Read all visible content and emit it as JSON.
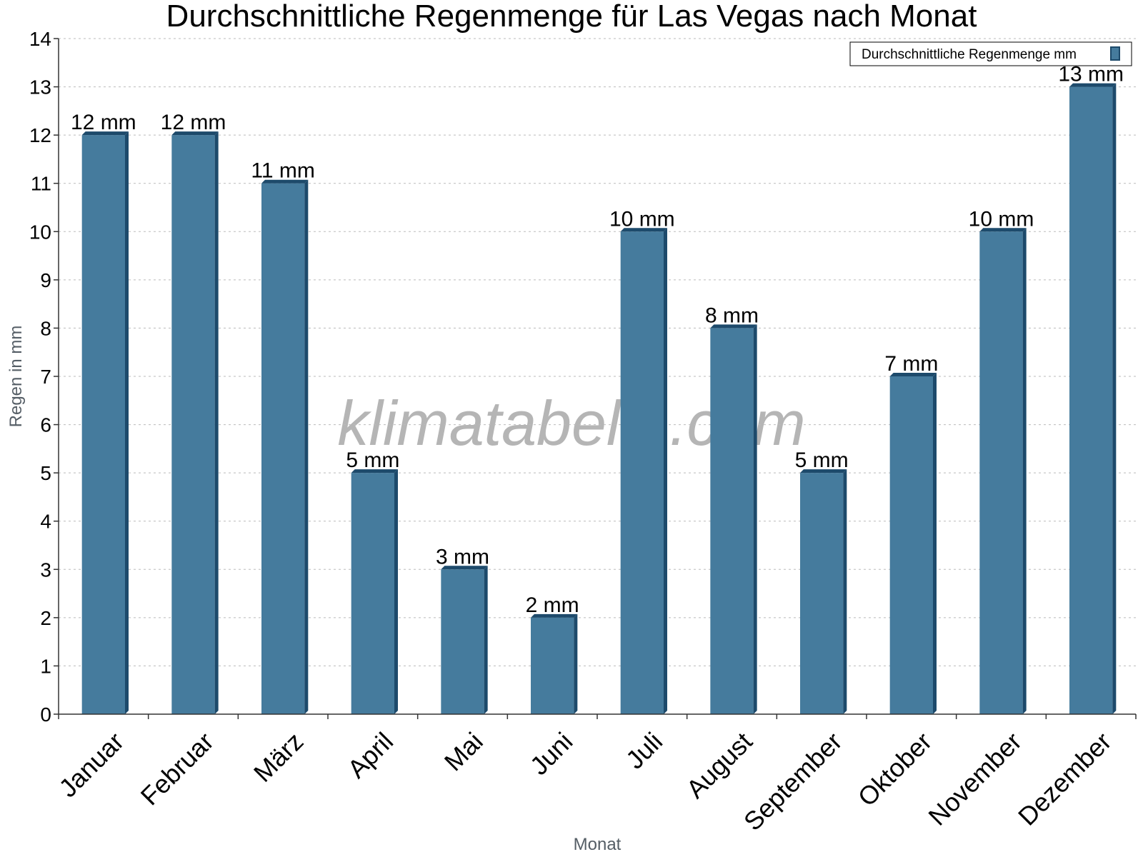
{
  "chart_data": {
    "type": "bar",
    "title": "Durchschnittliche Regenmenge für Las Vegas nach Monat",
    "xlabel": "Monat",
    "ylabel": "Regen in mm",
    "ylim": [
      0,
      14
    ],
    "yticks": [
      0,
      1,
      2,
      3,
      4,
      5,
      6,
      7,
      8,
      9,
      10,
      11,
      12,
      13,
      14
    ],
    "grid": true,
    "legend_position": "top-right",
    "categories": [
      "Januar",
      "Februar",
      "März",
      "April",
      "Mai",
      "Juni",
      "Juli",
      "August",
      "September",
      "Oktober",
      "November",
      "Dezember"
    ],
    "series": [
      {
        "name": "Durchschnittliche Regenmenge mm",
        "values": [
          12,
          12,
          11,
          5,
          3,
          2,
          10,
          8,
          5,
          7,
          10,
          13
        ],
        "labels": [
          "12 mm",
          "12 mm",
          "11 mm",
          "5 mm",
          "3 mm",
          "2 mm",
          "10 mm",
          "8 mm",
          "5 mm",
          "7 mm",
          "10 mm",
          "13 mm"
        ]
      }
    ],
    "colors": {
      "bar": "#457b9d",
      "bar_side": "#1d4a6b",
      "bar_top": "#1d4a6b",
      "grid": "#bbbbbb",
      "axis": "#333333"
    }
  },
  "watermark": "klimatabelle.com"
}
